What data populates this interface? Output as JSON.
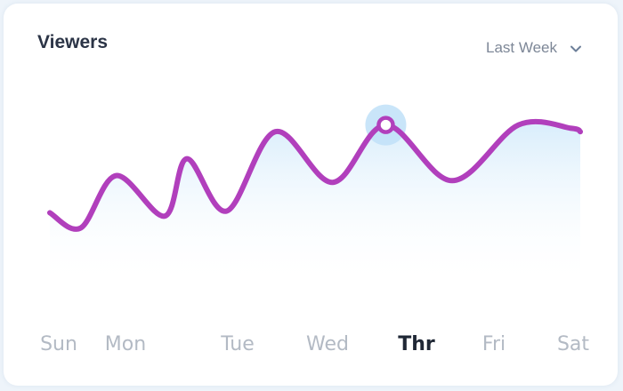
{
  "card": {
    "title": "Viewers",
    "range": {
      "selected": "Last Week",
      "icon": "chevron-down-icon"
    }
  },
  "colors": {
    "line": "#b13fbc",
    "area_top": "#d6ecfb",
    "highlight_halo": "#bfe0f8",
    "active_label": "#1f2735",
    "inactive_label": "#b3bac4"
  },
  "chart_data": {
    "type": "area",
    "title": "Viewers",
    "categories": [
      "Sun",
      "Mon",
      "Tue",
      "Wed",
      "Thr",
      "Fri",
      "Sat"
    ],
    "highlighted": "Thr",
    "smooth": true,
    "grid": false,
    "legend": "none",
    "ylim": [
      0,
      100
    ],
    "x": [
      0.0,
      0.35,
      0.75,
      1.3,
      1.55,
      2.0,
      2.55,
      3.2,
      3.8,
      4.55,
      5.3,
      5.9,
      6.0
    ],
    "values": [
      34,
      25,
      56,
      32,
      66,
      35,
      82,
      52,
      86,
      53,
      86,
      84,
      82
    ]
  }
}
